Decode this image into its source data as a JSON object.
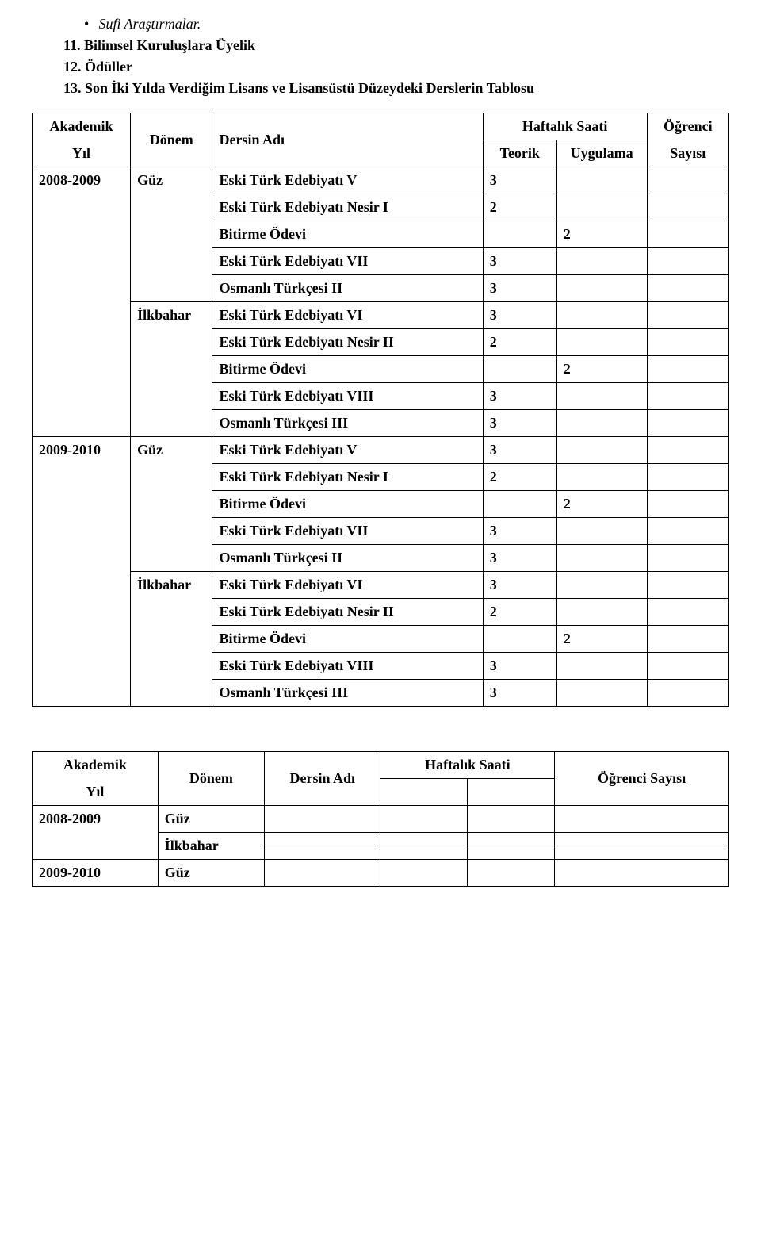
{
  "top": {
    "bullet": "•",
    "italicText": "Sufi Araştırmalar.",
    "sec11": "11. Bilimsel Kuruluşlara Üyelik",
    "sec12": "12. Ödüller",
    "sec13": "13. Son İki Yılda Verdiğim Lisans ve Lisansüstü Düzeydeki Derslerin Tablosu"
  },
  "t1": {
    "h": {
      "akademik": "Akademik",
      "yil": "Yıl",
      "donem": "Dönem",
      "dersinAdi": "Dersin Adı",
      "haftalik": "Haftalık Saati",
      "teorik": "Teorik",
      "uygulama": "Uygulama",
      "ogrenci": "Öğrenci",
      "sayisi": "Sayısı"
    },
    "y2008": "2008-2009",
    "y2009": "2009-2010",
    "guz": "Güz",
    "ilkbahar": "İlkbahar",
    "rows": {
      "etv": "Eski Türk Edebiyatı V",
      "etn1": "Eski Türk Edebiyatı Nesir I",
      "bo": "Bitirme Ödevi",
      "et7": "Eski Türk Edebiyatı VII",
      "ot2": "Osmanlı Türkçesi II",
      "et6": "Eski Türk Edebiyatı VI",
      "etn2": "Eski Türk Edebiyatı Nesir II",
      "et8": "Eski Türk Edebiyatı VIII",
      "ot3": "Osmanlı Türkçesi III"
    },
    "v": {
      "n2": "2",
      "n3": "3"
    }
  },
  "t2": {
    "h": {
      "akademik": "Akademik",
      "yil": "Yıl",
      "donem": "Dönem",
      "dersinAdi": "Dersin Adı",
      "haftalik": "Haftalık Saati",
      "ogrenci": "Öğrenci Sayısı"
    },
    "y2008": "2008-2009",
    "y2009": "2009-2010",
    "guz": "Güz",
    "ilkbahar": "İlkbahar"
  }
}
